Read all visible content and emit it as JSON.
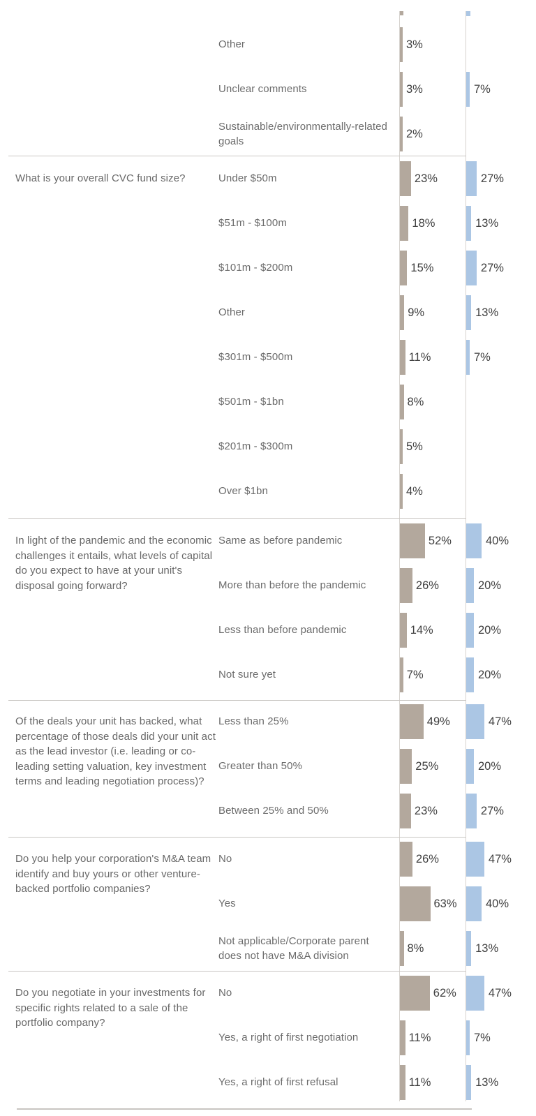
{
  "chart_data": {
    "type": "bar",
    "orientation": "horizontal",
    "units": "%",
    "value_labels_shown": true,
    "legend": "none visible",
    "grid": "section separator rules and two vertical baselines",
    "partial_bars_clipped_at_top_edge": true,
    "colors": {
      "brown_bar": "#b3a89d",
      "blue_bar": "#abc6e4",
      "baseline_gray": "#d6d2ce",
      "separator_gray": "#c9c6c3",
      "question_text": "#686868",
      "answer_text": "#6b6b6b",
      "value_text": "#404040"
    },
    "series": [
      {
        "name": "brown-series",
        "color": "#b3a89d"
      },
      {
        "name": "blue-series",
        "color": "#abc6e4"
      }
    ],
    "sections": [
      {
        "question": "",
        "rows": [
          {
            "label": "Other",
            "brown": 3,
            "blue": null
          },
          {
            "label": "Unclear comments",
            "brown": 3,
            "blue": 7
          },
          {
            "label": "Sustainable/environmentally-related goals",
            "brown": 2,
            "blue": null
          }
        ]
      },
      {
        "question": "What is your overall CVC fund size?",
        "rows": [
          {
            "label": "Under $50m",
            "brown": 23,
            "blue": 27
          },
          {
            "label": "$51m - $100m",
            "brown": 18,
            "blue": 13
          },
          {
            "label": "$101m - $200m",
            "brown": 15,
            "blue": 27
          },
          {
            "label": "Other",
            "brown": 9,
            "blue": 13
          },
          {
            "label": "$301m - $500m",
            "brown": 11,
            "blue": 7
          },
          {
            "label": "$501m - $1bn",
            "brown": 8,
            "blue": null
          },
          {
            "label": "$201m - $300m",
            "brown": 5,
            "blue": null
          },
          {
            "label": "Over $1bn",
            "brown": 4,
            "blue": null
          }
        ]
      },
      {
        "question": "In light of the pandemic and the economic challenges it entails, what levels of capital do you expect to have at your unit's disposal going forward?",
        "rows": [
          {
            "label": "Same as before pandemic",
            "brown": 52,
            "blue": 40
          },
          {
            "label": "More than before the pandemic",
            "brown": 26,
            "blue": 20
          },
          {
            "label": "Less than before pandemic",
            "brown": 14,
            "blue": 20
          },
          {
            "label": "Not sure yet",
            "brown": 7,
            "blue": 20
          }
        ]
      },
      {
        "question": "Of the deals your unit has backed, what percentage of those deals did your unit act as the lead investor (i.e. leading or co-leading setting valuation, key investment terms and leading negotiation process)?",
        "rows": [
          {
            "label": "Less than 25%",
            "brown": 49,
            "blue": 47
          },
          {
            "label": "Greater than 50%",
            "brown": 25,
            "blue": 20
          },
          {
            "label": "Between 25% and 50%",
            "brown": 23,
            "blue": 27
          }
        ]
      },
      {
        "question": "Do you help your corporation's M&A team identify and buy yours or other venture-backed portfolio companies?",
        "rows": [
          {
            "label": "No",
            "brown": 26,
            "blue": 47
          },
          {
            "label": "Yes",
            "brown": 63,
            "blue": 40
          },
          {
            "label": "Not applicable/Corporate parent does not have M&A division",
            "brown": 8,
            "blue": 13
          }
        ]
      },
      {
        "question": "Do you negotiate in your investments for specific rights related to a sale of the portfolio company?",
        "rows": [
          {
            "label": "No",
            "brown": 62,
            "blue": 47
          },
          {
            "label": "Yes, a right of first negotiation",
            "brown": 11,
            "blue": 7
          },
          {
            "label": "Yes, a right of first refusal",
            "brown": 11,
            "blue": 13
          }
        ]
      }
    ]
  }
}
